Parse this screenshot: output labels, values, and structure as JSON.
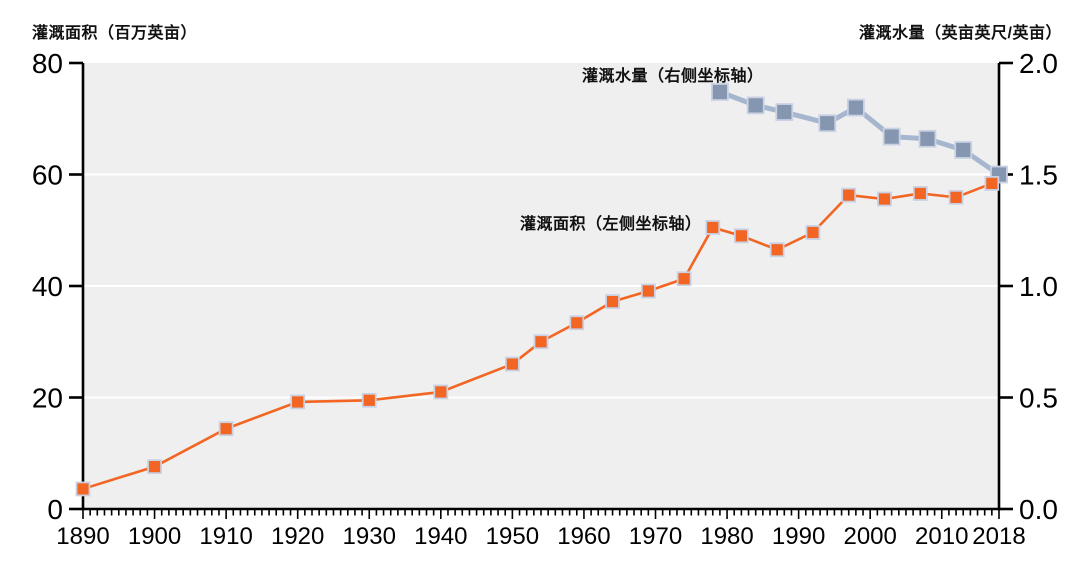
{
  "chart_data": {
    "type": "line",
    "title": "",
    "left_axis": {
      "label": "灌溉面积（百万英亩）",
      "range": [
        0,
        80
      ],
      "ticks": [
        0,
        20,
        40,
        60,
        80
      ],
      "tick_labels": [
        "0",
        "20",
        "40",
        "60",
        "80"
      ],
      "gridlines": [
        20,
        40,
        60
      ]
    },
    "right_axis": {
      "label": "灌溉水量（英亩英尺/英亩）",
      "range": [
        0,
        2
      ],
      "ticks": [
        0,
        0.5,
        1,
        1.5,
        2
      ],
      "tick_labels": [
        "0.0",
        "0.5",
        "1.0",
        "1.5",
        "2.0"
      ]
    },
    "x_axis": {
      "range": [
        1890,
        2018
      ],
      "minor_tick_interval": 1,
      "tick_years": [
        1890,
        1900,
        1910,
        1920,
        1930,
        1940,
        1950,
        1960,
        1970,
        1980,
        1990,
        2000,
        2010,
        2018
      ],
      "tick_labels": [
        "1890",
        "1900",
        "1910",
        "1920",
        "1930",
        "1940",
        "1950",
        "1960",
        "1970",
        "1980",
        "1990",
        "2000",
        "2010",
        "2018"
      ]
    },
    "grid": true,
    "legend_position": "inline-annotations",
    "plot_bg": "#efefef",
    "gridline_color": "#ffffff",
    "axis_color": "#000000",
    "series": [
      {
        "id": "area-series",
        "name": "灌溉面积",
        "label": "灌溉面积（左侧坐标轴）",
        "axis": "left",
        "marker": "square",
        "color": "#f26522",
        "line_color": "#f26522",
        "marker_edge": "#c9d1e3",
        "x": [
          1890,
          1900,
          1910,
          1920,
          1930,
          1940,
          1950,
          1954,
          1959,
          1964,
          1969,
          1974,
          1978,
          1982,
          1987,
          1992,
          1997,
          2002,
          2007,
          2012,
          2017
        ],
        "values": [
          3.6,
          7.6,
          14.4,
          19.2,
          19.5,
          21.0,
          26.0,
          30.0,
          33.4,
          37.2,
          39.1,
          41.3,
          50.5,
          49.0,
          46.5,
          49.6,
          56.3,
          55.6,
          56.6,
          55.9,
          58.4
        ]
      },
      {
        "id": "water-series",
        "name": "灌溉水量",
        "label": "灌溉水量（右侧坐标轴）",
        "axis": "right",
        "marker": "square",
        "color": "#8496b0",
        "line_color": "#a6b6ce",
        "marker_edge": "#c9d1e3",
        "x": [
          1979,
          1984,
          1988,
          1994,
          1998,
          2003,
          2008,
          2013,
          2018
        ],
        "values": [
          1.87,
          1.81,
          1.78,
          1.73,
          1.8,
          1.67,
          1.66,
          1.61,
          1.5
        ]
      }
    ]
  }
}
